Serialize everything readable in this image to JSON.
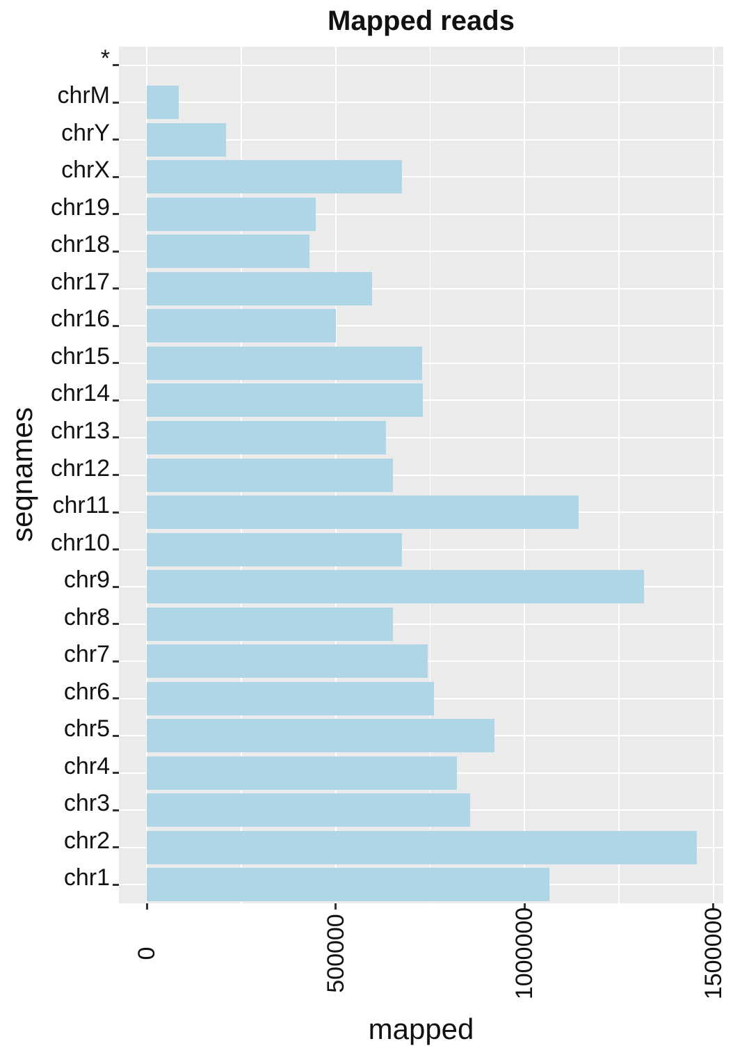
{
  "title": "Mapped reads",
  "axes": {
    "x_title": "mapped",
    "y_title": "seqnames",
    "x_tick_labels": [
      "0",
      "500000",
      "1000000",
      "1500000"
    ]
  },
  "colors": {
    "bar_fill": "#afd6e6",
    "panel_background": "#ebebeb",
    "gridline": "#ffffff",
    "tick_mark": "#333333",
    "text": "#111111"
  },
  "chart_data": {
    "type": "bar",
    "orientation": "horizontal",
    "title": "Mapped reads",
    "xlabel": "mapped",
    "ylabel": "seqnames",
    "legend": "none",
    "grid": "white major and minor gridlines on gray panel",
    "x_ticks": [
      0,
      500000,
      1000000,
      1500000
    ],
    "x_minor_ticks": [
      250000,
      750000,
      1250000
    ],
    "xlim": [
      0,
      1530000
    ],
    "categories_top_to_bottom": [
      "*",
      "chrM",
      "chrY",
      "chrX",
      "chr19",
      "chr18",
      "chr17",
      "chr16",
      "chr15",
      "chr14",
      "chr13",
      "chr12",
      "chr11",
      "chr10",
      "chr9",
      "chr8",
      "chr7",
      "chr6",
      "chr5",
      "chr4",
      "chr3",
      "chr2",
      "chr1"
    ],
    "values": [
      0,
      85000,
      210000,
      675000,
      447000,
      430000,
      597000,
      500000,
      728000,
      731000,
      633000,
      652000,
      1143000,
      676000,
      1316000,
      652000,
      744000,
      760000,
      920000,
      820000,
      856000,
      1455000,
      1065000
    ]
  }
}
